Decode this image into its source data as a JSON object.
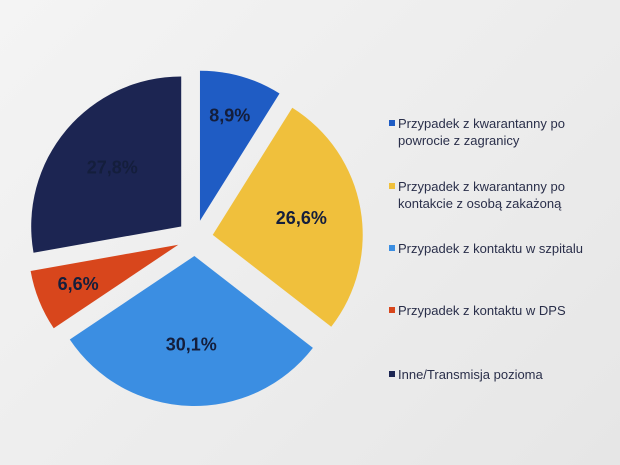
{
  "chart_data": {
    "type": "pie",
    "categories": [
      "Przypadek z kwarantanny po powrocie z zagranicy",
      "Przypadek z kwarantanny po kontakcie z osobą zakażoną",
      "Przypadek z kontaktu w szpitalu",
      "Przypadek z kontaktu w DPS",
      "Inne/Transmisja pozioma"
    ],
    "values": [
      8.9,
      26.6,
      30.1,
      6.6,
      27.8
    ],
    "value_labels": [
      "8,9%",
      "26,6%",
      "30,1%",
      "6,6%",
      "27,8%"
    ],
    "colors": [
      "#1f5cc4",
      "#f0c03c",
      "#3b8ee2",
      "#d8461c",
      "#1c2552"
    ],
    "legend": "right"
  }
}
